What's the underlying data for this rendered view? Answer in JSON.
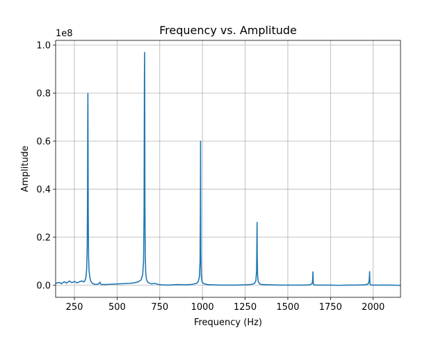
{
  "chart_data": {
    "type": "line",
    "title": "Frequency vs. Amplitude",
    "xlabel": "Frequency (Hz)",
    "ylabel": "Amplitude",
    "y_scale_label": "1e8",
    "xlim": [
      140,
      2160
    ],
    "ylim": [
      -0.05,
      1.02
    ],
    "y_multiplier": 100000000,
    "grid": true,
    "line_color": "#1f77b4",
    "x_ticks": [
      250,
      500,
      750,
      1000,
      1250,
      1500,
      1750,
      2000
    ],
    "x_tick_labels": [
      "250",
      "500",
      "750",
      "1000",
      "1250",
      "1500",
      "1750",
      "2000"
    ],
    "y_ticks": [
      0.0,
      0.2,
      0.4,
      0.6,
      0.8,
      1.0
    ],
    "y_tick_labels": [
      "0.0",
      "0.2",
      "0.4",
      "0.6",
      "0.8",
      "1.0"
    ],
    "series": [
      {
        "x": [
          140,
          160,
          175,
          190,
          205,
          220,
          235,
          250,
          265,
          280,
          295,
          305,
          312,
          318,
          322,
          325,
          327,
          328,
          329,
          330,
          331,
          333,
          336,
          340,
          345,
          355,
          370,
          390,
          400,
          403,
          406,
          420,
          450,
          480,
          510,
          540,
          570,
          600,
          625,
          640,
          650,
          655,
          658,
          660,
          661,
          662,
          663,
          665,
          668,
          672,
          680,
          700,
          720,
          740,
          760,
          800,
          850,
          900,
          940,
          965,
          975,
          982,
          986,
          988,
          989,
          990,
          991,
          993,
          996,
          1000,
          1010,
          1030,
          1060,
          1100,
          1150,
          1200,
          1250,
          1290,
          1305,
          1313,
          1317,
          1319,
          1320,
          1321,
          1323,
          1327,
          1335,
          1350,
          1400,
          1450,
          1500,
          1550,
          1600,
          1630,
          1643,
          1646,
          1647,
          1648,
          1649,
          1650,
          1653,
          1660,
          1700,
          1750,
          1800,
          1850,
          1900,
          1950,
          1970,
          1976,
          1978,
          1979,
          1980,
          1981,
          1983,
          1990,
          2050,
          2100,
          2160
        ],
        "y": [
          0.008,
          0.012,
          0.007,
          0.015,
          0.009,
          0.018,
          0.011,
          0.016,
          0.01,
          0.015,
          0.018,
          0.014,
          0.02,
          0.035,
          0.07,
          0.16,
          0.4,
          0.68,
          0.8,
          0.58,
          0.3,
          0.12,
          0.06,
          0.035,
          0.018,
          0.008,
          0.004,
          0.005,
          0.013,
          0.006,
          0.004,
          0.003,
          0.004,
          0.005,
          0.006,
          0.007,
          0.008,
          0.01,
          0.015,
          0.022,
          0.045,
          0.1,
          0.3,
          0.85,
          0.97,
          0.75,
          0.35,
          0.12,
          0.05,
          0.025,
          0.012,
          0.006,
          0.008,
          0.004,
          0.002,
          0.001,
          0.003,
          0.002,
          0.004,
          0.008,
          0.015,
          0.035,
          0.1,
          0.33,
          0.6,
          0.38,
          0.13,
          0.045,
          0.02,
          0.012,
          0.006,
          0.003,
          0.002,
          0.001,
          0.001,
          0.001,
          0.002,
          0.004,
          0.008,
          0.02,
          0.06,
          0.2,
          0.262,
          0.12,
          0.04,
          0.015,
          0.006,
          0.003,
          0.002,
          0.001,
          0.001,
          0.001,
          0.001,
          0.002,
          0.008,
          0.03,
          0.056,
          0.04,
          0.015,
          0.005,
          0.002,
          0.001,
          0.001,
          0.001,
          0.0,
          0.001,
          0.001,
          0.002,
          0.005,
          0.018,
          0.04,
          0.057,
          0.03,
          0.01,
          0.003,
          0.001,
          0.001,
          0.001,
          0.0
        ]
      }
    ]
  }
}
